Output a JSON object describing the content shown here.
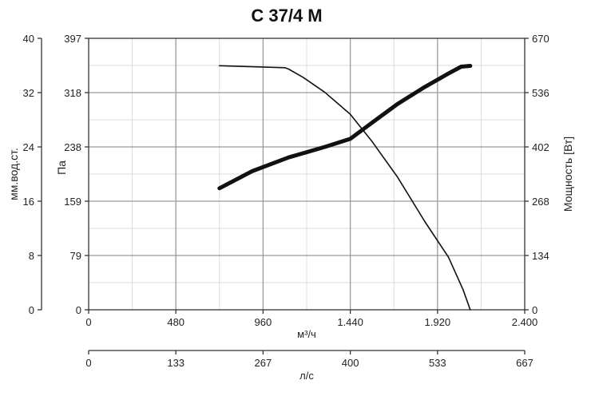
{
  "chart_data": {
    "type": "line",
    "title": "C 37/4 M",
    "x_axis_primary": {
      "label": "м³/ч",
      "ticks": [
        "0",
        "480",
        "960",
        "1.440",
        "1.920",
        "2.400"
      ],
      "range": [
        0,
        2400
      ]
    },
    "x_axis_secondary": {
      "label": "л/с",
      "ticks": [
        "0",
        "133",
        "267",
        "400",
        "533",
        "667"
      ],
      "range": [
        0,
        667
      ]
    },
    "y_axis_left_outer": {
      "label": "мм.вод.ст.",
      "ticks": [
        "0",
        "8",
        "16",
        "24",
        "32",
        "40"
      ],
      "range": [
        0,
        40
      ]
    },
    "y_axis_left_inner": {
      "label": "Па",
      "ticks": [
        "0",
        "79",
        "159",
        "238",
        "318",
        "397"
      ],
      "range": [
        0,
        397
      ]
    },
    "y_axis_right": {
      "label": "Мощность [Вт]",
      "ticks": [
        "0",
        "134",
        "268",
        "402",
        "536",
        "670"
      ],
      "range": [
        0,
        670
      ]
    },
    "grid": true,
    "series": [
      {
        "axis": "pressure",
        "x": [
          720,
          1080,
          1100,
          1180,
          1300,
          1440,
          1560,
          1700,
          1850,
          1980,
          2060,
          2100
        ],
        "y": [
          357,
          354,
          352,
          340,
          318,
          286,
          246,
          194,
          129,
          77,
          30,
          0
        ]
      },
      {
        "axis": "power",
        "x": [
          720,
          900,
          1100,
          1300,
          1440,
          1560,
          1700,
          1850,
          1980,
          2050,
          2100
        ],
        "y": [
          300,
          342,
          376,
          402,
          422,
          462,
          508,
          550,
          583,
          600,
          602
        ]
      }
    ]
  }
}
